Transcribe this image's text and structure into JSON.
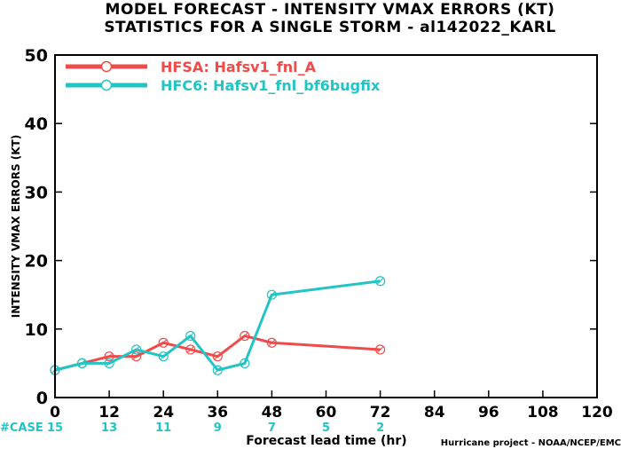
{
  "chart_data": {
    "type": "line",
    "title": "MODEL FORECAST - INTENSITY VMAX ERRORS (KT)",
    "subtitle": "STATISTICS FOR A SINGLE STORM - al142022_KARL",
    "xlabel": "Forecast lead time (hr)",
    "ylabel": "INTENSITY VMAX ERRORS (KT)",
    "xlim": [
      0,
      120
    ],
    "ylim": [
      0,
      50
    ],
    "x_ticks": [
      0,
      12,
      24,
      36,
      48,
      60,
      72,
      84,
      96,
      108,
      120
    ],
    "y_ticks": [
      0,
      10,
      20,
      30,
      40,
      50
    ],
    "grid": false,
    "legend_position": "top-left",
    "credit": "Hurricane project - NOAA/NCEP/EMC",
    "cases": {
      "label": "#CASE",
      "color": "#22c4c4",
      "x": [
        0,
        12,
        24,
        36,
        48,
        60,
        72
      ],
      "values": [
        15,
        13,
        11,
        9,
        7,
        5,
        2
      ]
    },
    "series": [
      {
        "name": "HFSA: Hafsv1_fnl_A",
        "color": "#ef4b4b",
        "x": [
          0,
          6,
          12,
          18,
          24,
          30,
          36,
          42,
          48,
          72
        ],
        "y": [
          4,
          5,
          6,
          6,
          8,
          7,
          6,
          9,
          8,
          7
        ]
      },
      {
        "name": "HFC6: Hafsv1_fnl_bf6bugfix",
        "color": "#22c4c4",
        "x": [
          0,
          6,
          12,
          18,
          24,
          30,
          36,
          42,
          48,
          72
        ],
        "y": [
          4,
          5,
          5,
          7,
          6,
          9,
          4,
          5,
          15,
          17
        ]
      }
    ]
  }
}
